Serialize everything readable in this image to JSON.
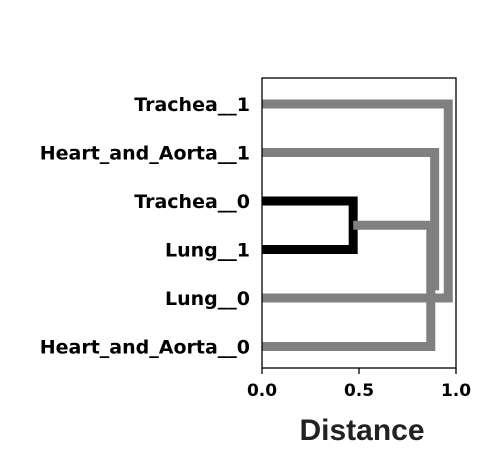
{
  "chart_data": {
    "type": "dendrogram",
    "orientation": "horizontal",
    "xlabel": "Distance",
    "xlim": [
      0,
      1.0
    ],
    "xticks": [
      {
        "value": 0.0,
        "label": "0.0"
      },
      {
        "value": 0.5,
        "label": "0.5"
      },
      {
        "value": 1.0,
        "label": "1.0"
      }
    ],
    "leaves": [
      "Trachea__1",
      "Heart_and_Aorta__1",
      "Trachea__0",
      "Lung__1",
      "Lung__0",
      "Heart_and_Aorta__0"
    ],
    "merges": [
      {
        "a": {
          "leaf": 2
        },
        "b": {
          "leaf": 3
        },
        "distance": 0.47,
        "color": "#000000"
      },
      {
        "a": {
          "merge": 0
        },
        "b": {
          "leaf": 5
        },
        "distance": 0.87,
        "color": "#808080"
      },
      {
        "a": {
          "leaf": 1
        },
        "b": {
          "merge": 1
        },
        "distance": 0.89,
        "color": "#808080"
      },
      {
        "a": {
          "leaf": 0
        },
        "b": {
          "leaf": 4
        },
        "distance": 0.96,
        "color": "#808080"
      }
    ]
  }
}
